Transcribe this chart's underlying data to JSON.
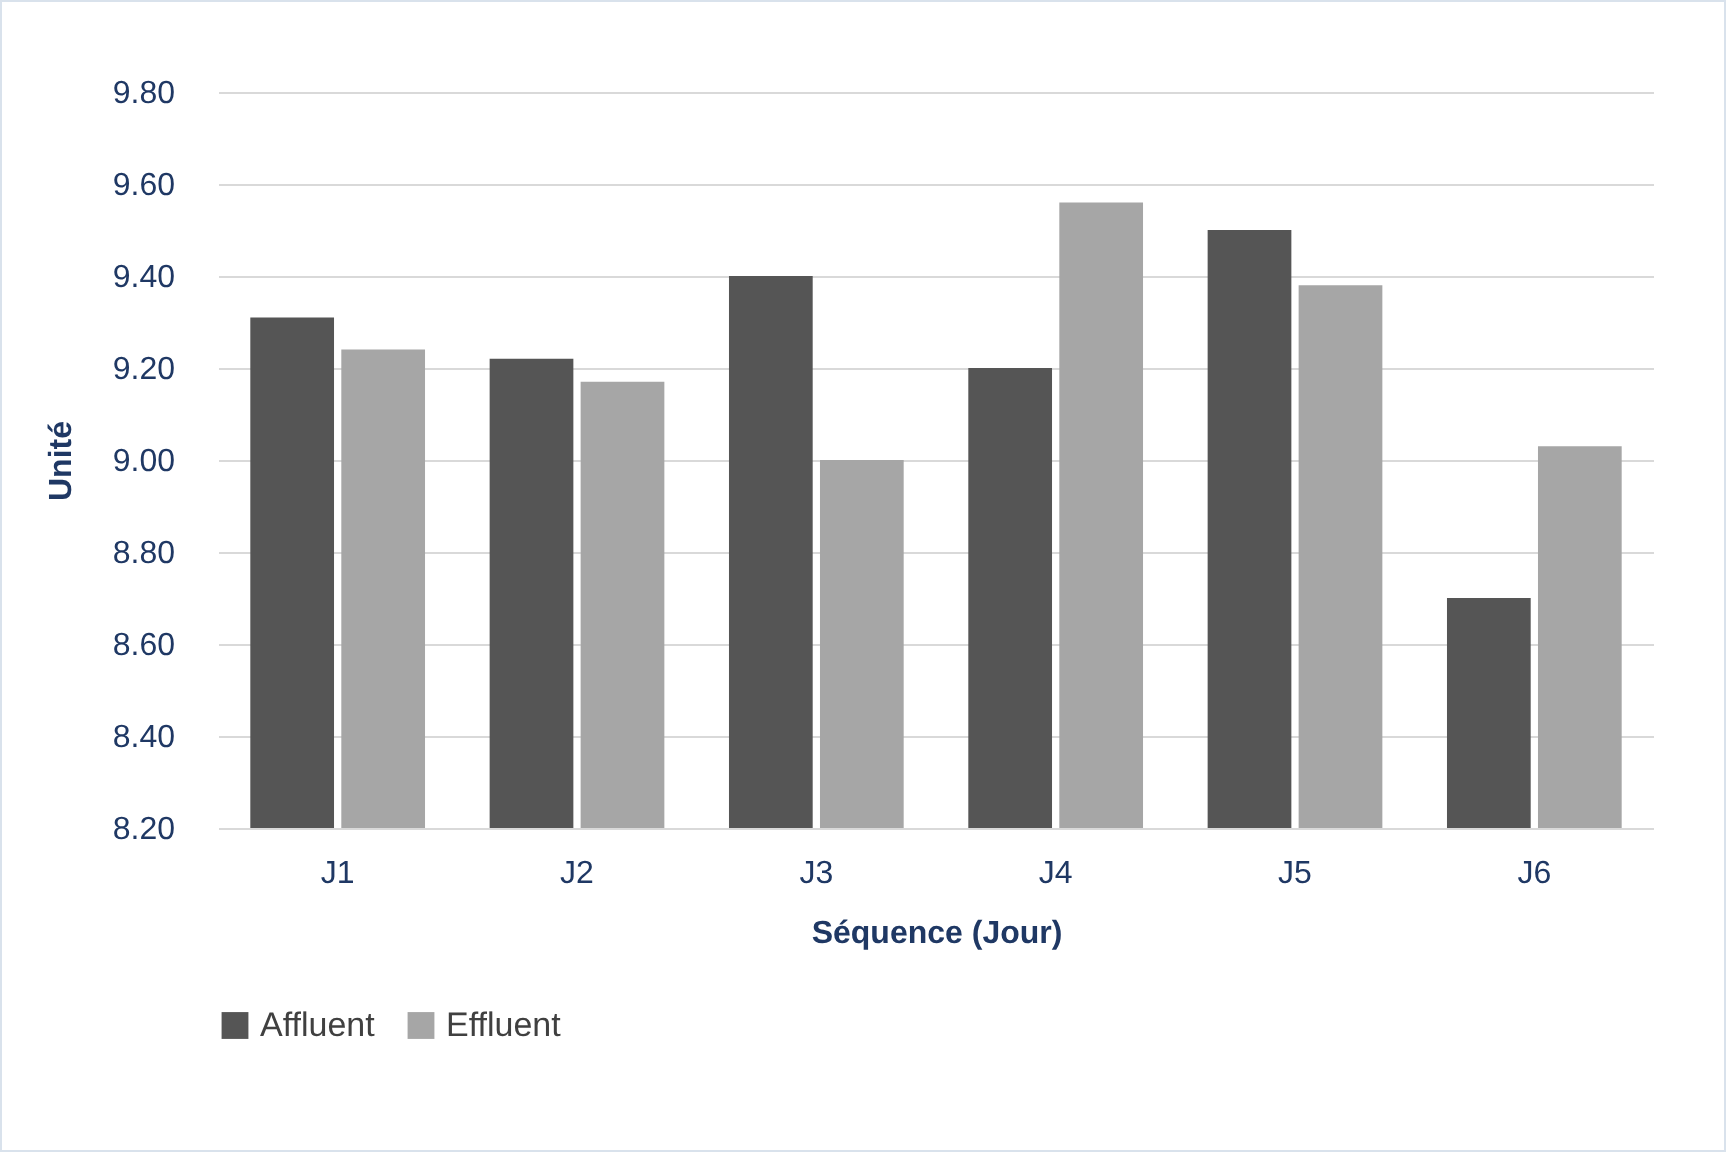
{
  "chart_data": {
    "type": "bar",
    "xlabel": "Séquence (Jour)",
    "ylabel": "Unité",
    "categories": [
      "J1",
      "J2",
      "J3",
      "J4",
      "J5",
      "J6"
    ],
    "series": [
      {
        "name": "Affluent",
        "color": "#555555",
        "values": [
          9.31,
          9.22,
          9.4,
          9.2,
          9.5,
          8.7
        ]
      },
      {
        "name": "Effluent",
        "color": "#a6a6a6",
        "values": [
          9.24,
          9.17,
          9.0,
          9.56,
          9.38,
          9.03
        ]
      }
    ],
    "ylim": [
      8.2,
      9.8
    ],
    "yticks": [
      {
        "value": 8.2,
        "label": "8.20"
      },
      {
        "value": 8.4,
        "label": "8.40"
      },
      {
        "value": 8.6,
        "label": "8.60"
      },
      {
        "value": 8.8,
        "label": "8.80"
      },
      {
        "value": 9.0,
        "label": "9.00"
      },
      {
        "value": 9.2,
        "label": "9.20"
      },
      {
        "value": 9.4,
        "label": "9.40"
      },
      {
        "value": 9.6,
        "label": "9.60"
      },
      {
        "value": 9.8,
        "label": "9.80"
      }
    ],
    "grid": "y",
    "legend": "bottom"
  }
}
